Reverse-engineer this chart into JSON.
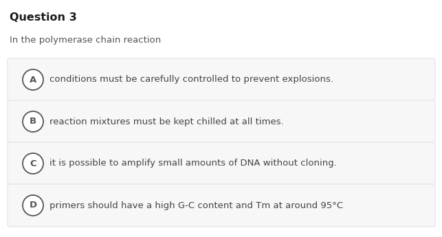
{
  "title": "Question 3",
  "stem": "In the polymerase chain reaction",
  "options": [
    {
      "label": "A",
      "text": "conditions must be carefully controlled to prevent explosions."
    },
    {
      "label": "B",
      "text": "reaction mixtures must be kept chilled at all times."
    },
    {
      "label": "C",
      "text": "it is possible to amplify small amounts of DNA without cloning."
    },
    {
      "label": "D",
      "text": "primers should have a high G-C content and Tm at around 95°C"
    }
  ],
  "bg_color": "#ffffff",
  "option_bg_color": "#f7f7f7",
  "option_border_color": "#dddddd",
  "title_color": "#1a1a1a",
  "stem_color": "#555555",
  "option_text_color": "#444444",
  "circle_edge_color": "#555555",
  "circle_face_color": "#ffffff",
  "title_fontsize": 11.5,
  "stem_fontsize": 9.5,
  "option_fontsize": 9.5,
  "label_fontsize": 9.5,
  "fig_width": 6.43,
  "fig_height": 3.45,
  "dpi": 100
}
